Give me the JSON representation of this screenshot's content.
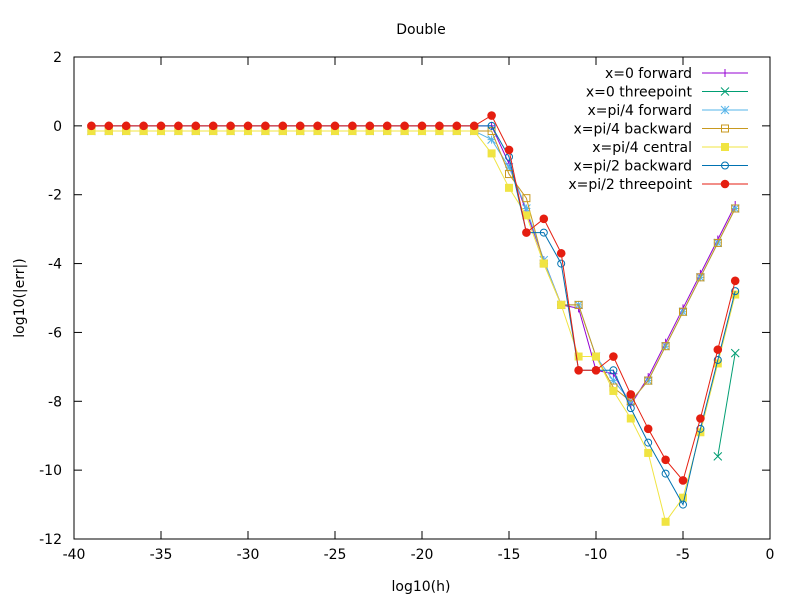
{
  "chart_data": {
    "type": "line",
    "title": "Double",
    "xlabel": "log10(h)",
    "ylabel": "log10(|err|)",
    "xlim": [
      -40,
      0
    ],
    "ylim": [
      -12,
      2
    ],
    "x_ticks": [
      -40,
      -35,
      -30,
      -25,
      -20,
      -15,
      -10,
      -5,
      0
    ],
    "y_ticks": [
      -12,
      -10,
      -8,
      -6,
      -4,
      -2,
      0,
      2
    ],
    "grid": false,
    "legend_position": "top-right",
    "series": [
      {
        "name": "x=0 forward",
        "color": "#9400d3",
        "marker": "plus",
        "x": [
          -39,
          -38,
          -37,
          -36,
          -35,
          -34,
          -33,
          -32,
          -31,
          -30,
          -29,
          -28,
          -27,
          -26,
          -25,
          -24,
          -23,
          -22,
          -21,
          -20,
          -19,
          -18,
          -17,
          -16,
          -15,
          -14,
          -13,
          -12,
          -11,
          -10,
          -9,
          -8,
          -7,
          -6,
          -5,
          -4,
          -3,
          -2
        ],
        "y": [
          0,
          0,
          0,
          0,
          0,
          0,
          0,
          0,
          0,
          0,
          0,
          0,
          0,
          0,
          0,
          0,
          0,
          0,
          0,
          0,
          0,
          0,
          0,
          0,
          -1.1,
          -2.5,
          -3.9,
          -5.2,
          -5.3,
          -7.1,
          -7.2,
          -8.1,
          -7.3,
          -6.3,
          -5.3,
          -4.3,
          -3.3,
          -2.3
        ]
      },
      {
        "name": "x=0 threepoint",
        "color": "#009e73",
        "marker": "cross",
        "x": [
          -3,
          -2
        ],
        "y": [
          -9.6,
          -6.6
        ]
      },
      {
        "name": "x=pi/4 forward",
        "color": "#56b4e9",
        "marker": "star",
        "x": [
          -39,
          -38,
          -37,
          -36,
          -35,
          -34,
          -33,
          -32,
          -31,
          -30,
          -29,
          -28,
          -27,
          -26,
          -25,
          -24,
          -23,
          -22,
          -21,
          -20,
          -19,
          -18,
          -17,
          -16,
          -15,
          -14,
          -13,
          -12,
          -11,
          -10,
          -9,
          -8,
          -7,
          -6,
          -5,
          -4,
          -3,
          -2
        ],
        "y": [
          -0.15,
          -0.15,
          -0.15,
          -0.15,
          -0.15,
          -0.15,
          -0.15,
          -0.15,
          -0.15,
          -0.15,
          -0.15,
          -0.15,
          -0.15,
          -0.15,
          -0.15,
          -0.15,
          -0.15,
          -0.15,
          -0.15,
          -0.15,
          -0.15,
          -0.15,
          -0.15,
          -0.4,
          -1.2,
          -2.4,
          -3.9,
          -5.2,
          -5.2,
          -6.7,
          -7.4,
          -8.0,
          -7.4,
          -6.4,
          -5.4,
          -4.4,
          -3.4,
          -2.4
        ]
      },
      {
        "name": "x=pi/4 backward",
        "color": "#c8991f",
        "marker": "square-open",
        "x": [
          -39,
          -38,
          -37,
          -36,
          -35,
          -34,
          -33,
          -32,
          -31,
          -30,
          -29,
          -28,
          -27,
          -26,
          -25,
          -24,
          -23,
          -22,
          -21,
          -20,
          -19,
          -18,
          -17,
          -16,
          -15,
          -14,
          -13,
          -12,
          -11,
          -10,
          -9,
          -8,
          -7,
          -6,
          -5,
          -4,
          -3,
          -2
        ],
        "y": [
          -0.15,
          -0.15,
          -0.15,
          -0.15,
          -0.15,
          -0.15,
          -0.15,
          -0.15,
          -0.15,
          -0.15,
          -0.15,
          -0.15,
          -0.15,
          -0.15,
          -0.15,
          -0.15,
          -0.15,
          -0.15,
          -0.15,
          -0.15,
          -0.15,
          -0.15,
          -0.15,
          -0.15,
          -1.4,
          -2.1,
          -4.0,
          -5.2,
          -5.2,
          -6.7,
          -7.6,
          -8.0,
          -7.4,
          -6.4,
          -5.4,
          -4.4,
          -3.4,
          -2.4
        ]
      },
      {
        "name": "x=pi/4 central",
        "color": "#f0e442",
        "marker": "square-filled",
        "x": [
          -39,
          -38,
          -37,
          -36,
          -35,
          -34,
          -33,
          -32,
          -31,
          -30,
          -29,
          -28,
          -27,
          -26,
          -25,
          -24,
          -23,
          -22,
          -21,
          -20,
          -19,
          -18,
          -17,
          -16,
          -15,
          -14,
          -13,
          -12,
          -11,
          -10,
          -9,
          -8,
          -7,
          -6,
          -5,
          -4,
          -3,
          -2
        ],
        "y": [
          -0.15,
          -0.15,
          -0.15,
          -0.15,
          -0.15,
          -0.15,
          -0.15,
          -0.15,
          -0.15,
          -0.15,
          -0.15,
          -0.15,
          -0.15,
          -0.15,
          -0.15,
          -0.15,
          -0.15,
          -0.15,
          -0.15,
          -0.15,
          -0.15,
          -0.15,
          -0.15,
          -0.8,
          -1.8,
          -2.6,
          -4.0,
          -5.2,
          -6.7,
          -6.7,
          -7.7,
          -8.5,
          -9.5,
          -11.5,
          -10.8,
          -8.9,
          -6.9,
          -4.9
        ]
      },
      {
        "name": "x=pi/2 backward",
        "color": "#0072b2",
        "marker": "circle-open",
        "x": [
          -39,
          -38,
          -37,
          -36,
          -35,
          -34,
          -33,
          -32,
          -31,
          -30,
          -29,
          -28,
          -27,
          -26,
          -25,
          -24,
          -23,
          -22,
          -21,
          -20,
          -19,
          -18,
          -17,
          -16,
          -15,
          -14,
          -13,
          -12,
          -11,
          -10,
          -9,
          -8,
          -7,
          -6,
          -5,
          -4,
          -3,
          -2
        ],
        "y": [
          0,
          0,
          0,
          0,
          0,
          0,
          0,
          0,
          0,
          0,
          0,
          0,
          0,
          0,
          0,
          0,
          0,
          0,
          0,
          0,
          0,
          0,
          0,
          0,
          -0.9,
          -3.1,
          -3.1,
          -4.0,
          -7.1,
          -7.1,
          -7.1,
          -8.2,
          -9.2,
          -10.1,
          -11.0,
          -8.8,
          -6.8,
          -4.8
        ]
      },
      {
        "name": "x=pi/2 threepoint",
        "color": "#e51e10",
        "marker": "circle-filled",
        "x": [
          -39,
          -38,
          -37,
          -36,
          -35,
          -34,
          -33,
          -32,
          -31,
          -30,
          -29,
          -28,
          -27,
          -26,
          -25,
          -24,
          -23,
          -22,
          -21,
          -20,
          -19,
          -18,
          -17,
          -16,
          -15,
          -14,
          -13,
          -12,
          -11,
          -10,
          -9,
          -8,
          -7,
          -6,
          -5,
          -4,
          -3,
          -2
        ],
        "y": [
          0,
          0,
          0,
          0,
          0,
          0,
          0,
          0,
          0,
          0,
          0,
          0,
          0,
          0,
          0,
          0,
          0,
          0,
          0,
          0,
          0,
          0,
          0,
          0.3,
          -0.7,
          -3.1,
          -2.7,
          -3.7,
          -7.1,
          -7.1,
          -6.7,
          -7.8,
          -8.8,
          -9.7,
          -10.3,
          -8.5,
          -6.5,
          -4.5
        ]
      }
    ]
  }
}
